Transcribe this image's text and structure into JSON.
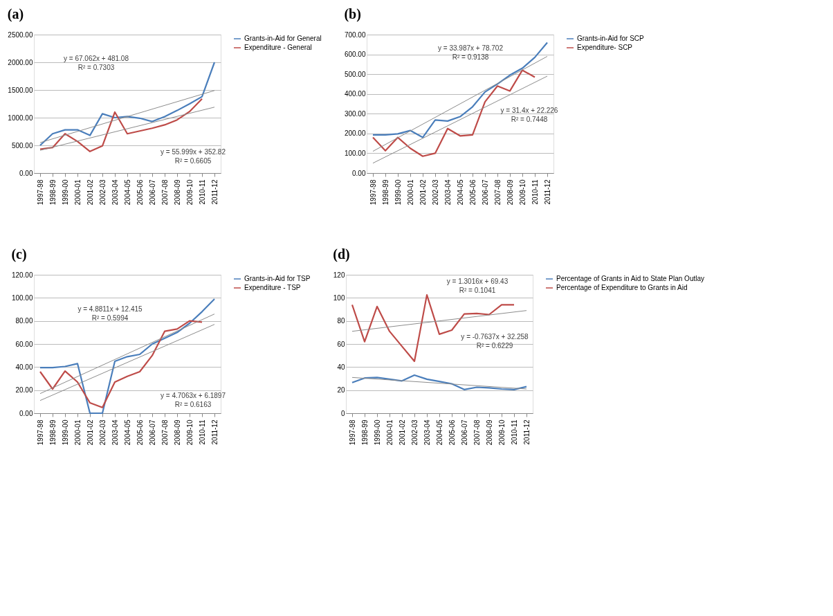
{
  "chart_data": [
    {
      "type": "line",
      "title": "(a)",
      "categories": [
        "1997-98",
        "1998-99",
        "1999-00",
        "2000-01",
        "2001-02",
        "2002-03",
        "2003-04",
        "2004-05",
        "2005-06",
        "2006-07",
        "2007-08",
        "2008-09",
        "2009-10",
        "2010-11",
        "2011-12"
      ],
      "series": [
        {
          "name": "Grants-in-Aid for General",
          "color": "#4a7ebb",
          "values": [
            500,
            710,
            780,
            780,
            680,
            1070,
            1000,
            1020,
            990,
            930,
            1020,
            1130,
            1250,
            1380,
            2000
          ]
        },
        {
          "name": "Expenditure - General",
          "color": "#be4b48",
          "values": [
            430,
            460,
            710,
            570,
            390,
            490,
            1100,
            710,
            760,
            810,
            870,
            960,
            1110,
            1340,
            null
          ]
        },
        {
          "type": "line",
          "color": "#8c8c8c",
          "values": [
            550,
            null,
            null,
            null,
            null,
            null,
            null,
            null,
            null,
            null,
            null,
            null,
            null,
            null,
            1490
          ]
        },
        {
          "type": "line",
          "color": "#8c8c8c",
          "values": [
            410,
            null,
            null,
            null,
            null,
            null,
            null,
            null,
            null,
            null,
            null,
            null,
            null,
            null,
            1190
          ]
        }
      ],
      "ylim": [
        0,
        2500
      ],
      "yticks": [
        {
          "value": 0,
          "label": "0.00"
        },
        {
          "value": 500,
          "label": "500.00"
        },
        {
          "value": 1000,
          "label": "1000.00"
        },
        {
          "value": 1500,
          "label": "1500.00"
        },
        {
          "value": 2000,
          "label": "2000.00"
        },
        {
          "value": 2500,
          "label": "2500.00"
        }
      ],
      "annotations": [
        "y = 67.062x + 481.08\nR² = 0.7303",
        "y = 55.999x + 352.82\nR² = 0.6605"
      ],
      "grid": "y",
      "legend": "right"
    },
    {
      "type": "line",
      "title": "(b)",
      "categories": [
        "1997-98",
        "1998-99",
        "1999-00",
        "2000-01",
        "2001-02",
        "2002-03",
        "2003-04",
        "2004-05",
        "2005-06",
        "2006-07",
        "2007-08",
        "2008-09",
        "2009-10",
        "2010-11",
        "2011-12"
      ],
      "series": [
        {
          "name": "Grants-in-Aid for SCP",
          "color": "#4a7ebb",
          "values": [
            193,
            193,
            198,
            215,
            180,
            268,
            263,
            285,
            335,
            410,
            450,
            495,
            530,
            585,
            660
          ]
        },
        {
          "name": "Expenditure- SCP",
          "color": "#be4b48",
          "values": [
            180,
            113,
            180,
            125,
            85,
            100,
            225,
            188,
            193,
            360,
            440,
            415,
            520,
            485,
            null
          ]
        },
        {
          "type": "line",
          "color": "#8c8c8c",
          "values": [
            110,
            null,
            null,
            null,
            null,
            null,
            null,
            null,
            null,
            null,
            null,
            null,
            null,
            null,
            590
          ]
        },
        {
          "type": "line",
          "color": "#8c8c8c",
          "values": [
            50,
            null,
            null,
            null,
            null,
            null,
            null,
            null,
            null,
            null,
            null,
            null,
            null,
            null,
            490
          ]
        }
      ],
      "ylim": [
        0,
        700
      ],
      "yticks": [
        {
          "value": 0,
          "label": "0.00"
        },
        {
          "value": 100,
          "label": "100.00"
        },
        {
          "value": 200,
          "label": "200.00"
        },
        {
          "value": 300,
          "label": "300.00"
        },
        {
          "value": 400,
          "label": "400.00"
        },
        {
          "value": 500,
          "label": "500.00"
        },
        {
          "value": 600,
          "label": "600.00"
        },
        {
          "value": 700,
          "label": "700.00"
        }
      ],
      "annotations": [
        "y = 33.987x + 78.702\nR² = 0.9138",
        "y = 31.4x + 22.226\nR² = 0.7448"
      ],
      "grid": "y",
      "legend": "right"
    },
    {
      "type": "line",
      "title": "(c)",
      "categories": [
        "1997-98",
        "1998-99",
        "1999-00",
        "2000-01",
        "2001-02",
        "2002-03",
        "2003-04",
        "2004-05",
        "2005-06",
        "2006-07",
        "2007-08",
        "2008-09",
        "2009-10",
        "2010-11",
        "2011-12"
      ],
      "series": [
        {
          "name": "Grants-in-Aid for TSP",
          "color": "#4a7ebb",
          "values": [
            39.5,
            39.5,
            40.5,
            43,
            0,
            0,
            45,
            49,
            51,
            60,
            65,
            70,
            78,
            88,
            99
          ]
        },
        {
          "name": "Expenditure - TSP",
          "color": "#be4b48",
          "values": [
            36,
            21,
            36.5,
            27,
            9,
            5,
            27,
            32,
            36,
            50,
            71,
            73,
            80,
            79,
            null
          ]
        },
        {
          "type": "line",
          "color": "#8c8c8c",
          "values": [
            17,
            null,
            null,
            null,
            null,
            null,
            null,
            null,
            null,
            null,
            null,
            null,
            null,
            null,
            86
          ]
        },
        {
          "type": "line",
          "color": "#8c8c8c",
          "values": [
            11,
            null,
            null,
            null,
            null,
            null,
            null,
            null,
            null,
            null,
            null,
            null,
            null,
            null,
            77
          ]
        }
      ],
      "ylim": [
        0,
        120
      ],
      "yticks": [
        {
          "value": 0,
          "label": "0.00"
        },
        {
          "value": 20,
          "label": "20.00"
        },
        {
          "value": 40,
          "label": "40.00"
        },
        {
          "value": 60,
          "label": "60.00"
        },
        {
          "value": 80,
          "label": "80.00"
        },
        {
          "value": 100,
          "label": "100.00"
        },
        {
          "value": 120,
          "label": "120.00"
        }
      ],
      "annotations": [
        "y = 4.8811x + 12.415\nR² = 0.5994",
        "y = 4.7063x + 6.1897\nR² = 0.6163"
      ],
      "grid": "y",
      "legend": "right"
    },
    {
      "type": "line",
      "title": "(d)",
      "categories": [
        "1997-98",
        "1998-99",
        "1999-00",
        "2000-01",
        "2001-02",
        "2002-03",
        "2003-04",
        "2004-05",
        "2005-06",
        "2006-07",
        "2007-08",
        "2008-09",
        "2009-10",
        "2010-11",
        "2011-12"
      ],
      "series": [
        {
          "name": "Percentage of Grants in Aid to State Plan Outlay",
          "color": "#4a7ebb",
          "values": [
            26.5,
            30.5,
            31,
            29.5,
            28,
            33,
            29.5,
            27.5,
            25.5,
            20.5,
            22.5,
            22,
            21,
            20.5,
            23
          ]
        },
        {
          "name": "Percentage of Expenditure to Grants in Aid",
          "color": "#be4b48",
          "values": [
            94,
            62,
            92.5,
            71,
            58,
            45,
            102.5,
            68.5,
            72,
            86,
            86.5,
            85.5,
            94,
            94,
            null
          ]
        },
        {
          "type": "line",
          "color": "#8c8c8c",
          "values": [
            71,
            null,
            null,
            null,
            null,
            null,
            null,
            null,
            null,
            null,
            null,
            null,
            null,
            null,
            89
          ]
        },
        {
          "type": "line",
          "color": "#8c8c8c",
          "values": [
            31,
            null,
            null,
            null,
            null,
            null,
            null,
            null,
            null,
            null,
            null,
            null,
            null,
            null,
            21
          ]
        }
      ],
      "ylim": [
        0,
        120
      ],
      "yticks": [
        0,
        20,
        40,
        60,
        80,
        100,
        120
      ],
      "annotations": [
        "y = 1.3016x + 69.43\nR² = 0.1041",
        "y = -0.7637x + 32.258\nR² = 0.6229"
      ],
      "grid": "y",
      "legend": "right"
    }
  ]
}
